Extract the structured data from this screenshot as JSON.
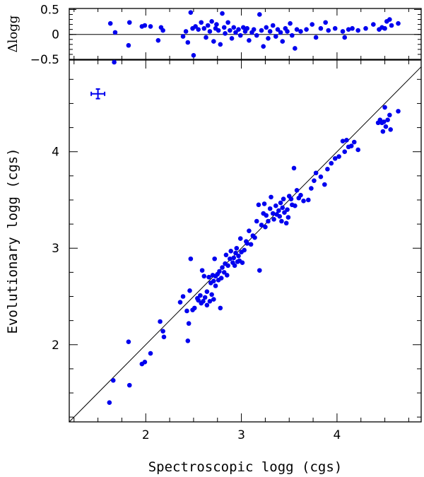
{
  "chart_data": [
    {
      "type": "scatter",
      "panel": "residuals",
      "ylabel": "Δlogg",
      "xlim": [
        1.2,
        4.88
      ],
      "ylim": [
        -0.5,
        0.52
      ],
      "y_ticks": [
        0.5,
        0,
        -0.5
      ],
      "y_tick_labels": [
        "0.5",
        "0",
        "−0.5"
      ],
      "reference_line": 0,
      "marker_color": "#0000ee",
      "points": [
        [
          1.63,
          0.22
        ],
        [
          1.68,
          0.04
        ],
        [
          1.82,
          -0.22
        ],
        [
          1.83,
          0.24
        ],
        [
          1.96,
          0.16
        ],
        [
          1.99,
          0.18
        ],
        [
          2.05,
          0.16
        ],
        [
          2.13,
          -0.12
        ],
        [
          2.16,
          0.14
        ],
        [
          2.18,
          0.08
        ],
        [
          2.39,
          -0.04
        ],
        [
          2.42,
          0.06
        ],
        [
          2.44,
          -0.16
        ],
        [
          2.47,
          0.44
        ],
        [
          2.49,
          0.12
        ],
        [
          2.5,
          -0.42
        ],
        [
          2.52,
          0.16
        ],
        [
          2.55,
          0.1
        ],
        [
          2.58,
          0.24
        ],
        [
          2.61,
          0.12
        ],
        [
          2.63,
          -0.06
        ],
        [
          2.65,
          0.18
        ],
        [
          2.67,
          0.06
        ],
        [
          2.69,
          0.26
        ],
        [
          2.71,
          -0.14
        ],
        [
          2.73,
          0.12
        ],
        [
          2.74,
          0.2
        ],
        [
          2.76,
          0.08
        ],
        [
          2.78,
          -0.2
        ],
        [
          2.8,
          0.42
        ],
        [
          2.82,
          0.14
        ],
        [
          2.83,
          0.02
        ],
        [
          2.86,
          0.24
        ],
        [
          2.88,
          0.08
        ],
        [
          2.9,
          -0.08
        ],
        [
          2.92,
          0.14
        ],
        [
          2.94,
          0.04
        ],
        [
          2.97,
          0.1
        ],
        [
          2.99,
          -0.02
        ],
        [
          3.02,
          0.14
        ],
        [
          3.04,
          0.06
        ],
        [
          3.06,
          0.12
        ],
        [
          3.08,
          -0.12
        ],
        [
          3.11,
          0.04
        ],
        [
          3.13,
          0.1
        ],
        [
          3.16,
          -0.02
        ],
        [
          3.19,
          0.4
        ],
        [
          3.21,
          0.08
        ],
        [
          3.23,
          -0.24
        ],
        [
          3.26,
          0.14
        ],
        [
          3.28,
          -0.08
        ],
        [
          3.3,
          0.06
        ],
        [
          3.33,
          0.18
        ],
        [
          3.36,
          -0.04
        ],
        [
          3.38,
          0.1
        ],
        [
          3.41,
          0.04
        ],
        [
          3.43,
          -0.14
        ],
        [
          3.46,
          0.12
        ],
        [
          3.48,
          0.06
        ],
        [
          3.51,
          0.22
        ],
        [
          3.53,
          -0.02
        ],
        [
          3.56,
          -0.28
        ],
        [
          3.58,
          0.1
        ],
        [
          3.62,
          0.06
        ],
        [
          3.68,
          0.1
        ],
        [
          3.74,
          0.2
        ],
        [
          3.78,
          -0.06
        ],
        [
          3.83,
          0.12
        ],
        [
          3.88,
          0.24
        ],
        [
          3.91,
          0.08
        ],
        [
          3.98,
          0.12
        ],
        [
          4.06,
          0.06
        ],
        [
          4.08,
          -0.06
        ],
        [
          4.12,
          0.1
        ],
        [
          4.16,
          0.12
        ],
        [
          4.22,
          0.08
        ],
        [
          4.3,
          0.12
        ],
        [
          4.38,
          0.2
        ],
        [
          4.44,
          0.1
        ],
        [
          4.47,
          0.14
        ],
        [
          4.5,
          0.12
        ],
        [
          4.52,
          0.26
        ],
        [
          4.55,
          0.3
        ],
        [
          4.57,
          0.18
        ],
        [
          4.64,
          0.22
        ]
      ]
    },
    {
      "type": "scatter",
      "panel": "main",
      "xlabel": "Spectroscopic logg (cgs)",
      "ylabel": "Evolutionary logg (cgs)",
      "xlim": [
        1.2,
        4.88
      ],
      "ylim": [
        1.2,
        4.95
      ],
      "x_ticks": [
        2,
        3,
        4
      ],
      "x_tick_labels": [
        "2",
        "3",
        "4"
      ],
      "y_ticks": [
        2,
        3,
        4
      ],
      "y_tick_labels": [
        "2",
        "3",
        "4"
      ],
      "reference_line": "y = x",
      "marker_color": "#0000ee",
      "error_bar": {
        "x": 1.5,
        "y": 4.6,
        "xerr": 0.07,
        "yerr": 0.05
      },
      "points": [
        [
          1.62,
          1.4
        ],
        [
          1.66,
          1.63
        ],
        [
          1.82,
          2.03
        ],
        [
          1.83,
          1.58
        ],
        [
          1.96,
          1.8
        ],
        [
          1.99,
          1.82
        ],
        [
          2.05,
          1.91
        ],
        [
          2.15,
          2.24
        ],
        [
          2.18,
          2.14
        ],
        [
          2.19,
          2.08
        ],
        [
          2.36,
          2.44
        ],
        [
          2.39,
          2.5
        ],
        [
          2.43,
          2.35
        ],
        [
          2.44,
          2.04
        ],
        [
          2.45,
          2.22
        ],
        [
          2.46,
          2.56
        ],
        [
          2.47,
          2.89
        ],
        [
          2.49,
          2.36
        ],
        [
          2.51,
          2.38
        ],
        [
          2.54,
          2.48
        ],
        [
          2.55,
          2.46
        ],
        [
          2.57,
          2.51
        ],
        [
          2.58,
          2.43
        ],
        [
          2.59,
          2.77
        ],
        [
          2.6,
          2.45
        ],
        [
          2.61,
          2.71
        ],
        [
          2.62,
          2.49
        ],
        [
          2.64,
          2.41
        ],
        [
          2.64,
          2.55
        ],
        [
          2.66,
          2.7
        ],
        [
          2.67,
          2.45
        ],
        [
          2.68,
          2.64
        ],
        [
          2.69,
          2.52
        ],
        [
          2.7,
          2.72
        ],
        [
          2.71,
          2.66
        ],
        [
          2.71,
          2.47
        ],
        [
          2.72,
          2.89
        ],
        [
          2.73,
          2.61
        ],
        [
          2.73,
          2.71
        ],
        [
          2.75,
          2.73
        ],
        [
          2.76,
          2.67
        ],
        [
          2.77,
          2.76
        ],
        [
          2.78,
          2.38
        ],
        [
          2.79,
          2.69
        ],
        [
          2.8,
          2.8
        ],
        [
          2.82,
          2.75
        ],
        [
          2.83,
          2.84
        ],
        [
          2.84,
          2.93
        ],
        [
          2.85,
          2.72
        ],
        [
          2.86,
          2.82
        ],
        [
          2.88,
          2.89
        ],
        [
          2.89,
          2.97
        ],
        [
          2.91,
          2.85
        ],
        [
          2.92,
          2.9
        ],
        [
          2.93,
          2.82
        ],
        [
          2.94,
          2.95
        ],
        [
          2.95,
          3.0
        ],
        [
          2.96,
          2.86
        ],
        [
          2.97,
          2.92
        ],
        [
          2.98,
          2.87
        ],
        [
          2.99,
          3.1
        ],
        [
          3.0,
          2.96
        ],
        [
          3.01,
          2.85
        ],
        [
          3.03,
          2.98
        ],
        [
          3.05,
          3.07
        ],
        [
          3.06,
          3.05
        ],
        [
          3.08,
          3.18
        ],
        [
          3.1,
          3.04
        ],
        [
          3.12,
          3.13
        ],
        [
          3.14,
          3.11
        ],
        [
          3.16,
          3.28
        ],
        [
          3.18,
          3.45
        ],
        [
          3.19,
          2.77
        ],
        [
          3.21,
          3.24
        ],
        [
          3.23,
          3.36
        ],
        [
          3.24,
          3.46
        ],
        [
          3.25,
          3.22
        ],
        [
          3.26,
          3.34
        ],
        [
          3.28,
          3.28
        ],
        [
          3.3,
          3.41
        ],
        [
          3.31,
          3.53
        ],
        [
          3.33,
          3.36
        ],
        [
          3.34,
          3.3
        ],
        [
          3.36,
          3.44
        ],
        [
          3.37,
          3.35
        ],
        [
          3.39,
          3.39
        ],
        [
          3.4,
          3.33
        ],
        [
          3.41,
          3.47
        ],
        [
          3.42,
          3.28
        ],
        [
          3.43,
          3.42
        ],
        [
          3.44,
          3.51
        ],
        [
          3.45,
          3.37
        ],
        [
          3.47,
          3.26
        ],
        [
          3.48,
          3.4
        ],
        [
          3.49,
          3.32
        ],
        [
          3.5,
          3.54
        ],
        [
          3.52,
          3.51
        ],
        [
          3.53,
          3.45
        ],
        [
          3.55,
          3.83
        ],
        [
          3.56,
          3.44
        ],
        [
          3.58,
          3.6
        ],
        [
          3.6,
          3.52
        ],
        [
          3.62,
          3.55
        ],
        [
          3.65,
          3.49
        ],
        [
          3.7,
          3.5
        ],
        [
          3.73,
          3.62
        ],
        [
          3.76,
          3.7
        ],
        [
          3.78,
          3.78
        ],
        [
          3.83,
          3.74
        ],
        [
          3.87,
          3.66
        ],
        [
          3.9,
          3.82
        ],
        [
          3.94,
          3.88
        ],
        [
          3.98,
          3.93
        ],
        [
          4.02,
          3.95
        ],
        [
          4.06,
          4.11
        ],
        [
          4.08,
          4.0
        ],
        [
          4.1,
          4.12
        ],
        [
          4.12,
          4.05
        ],
        [
          4.15,
          4.06
        ],
        [
          4.18,
          4.1
        ],
        [
          4.22,
          4.02
        ],
        [
          4.43,
          4.3
        ],
        [
          4.45,
          4.33
        ],
        [
          4.47,
          4.3
        ],
        [
          4.48,
          4.21
        ],
        [
          4.49,
          4.31
        ],
        [
          4.5,
          4.46
        ],
        [
          4.51,
          4.26
        ],
        [
          4.53,
          4.33
        ],
        [
          4.55,
          4.38
        ],
        [
          4.56,
          4.23
        ],
        [
          4.64,
          4.42
        ],
        [
          1.67,
          4.94
        ]
      ]
    }
  ]
}
